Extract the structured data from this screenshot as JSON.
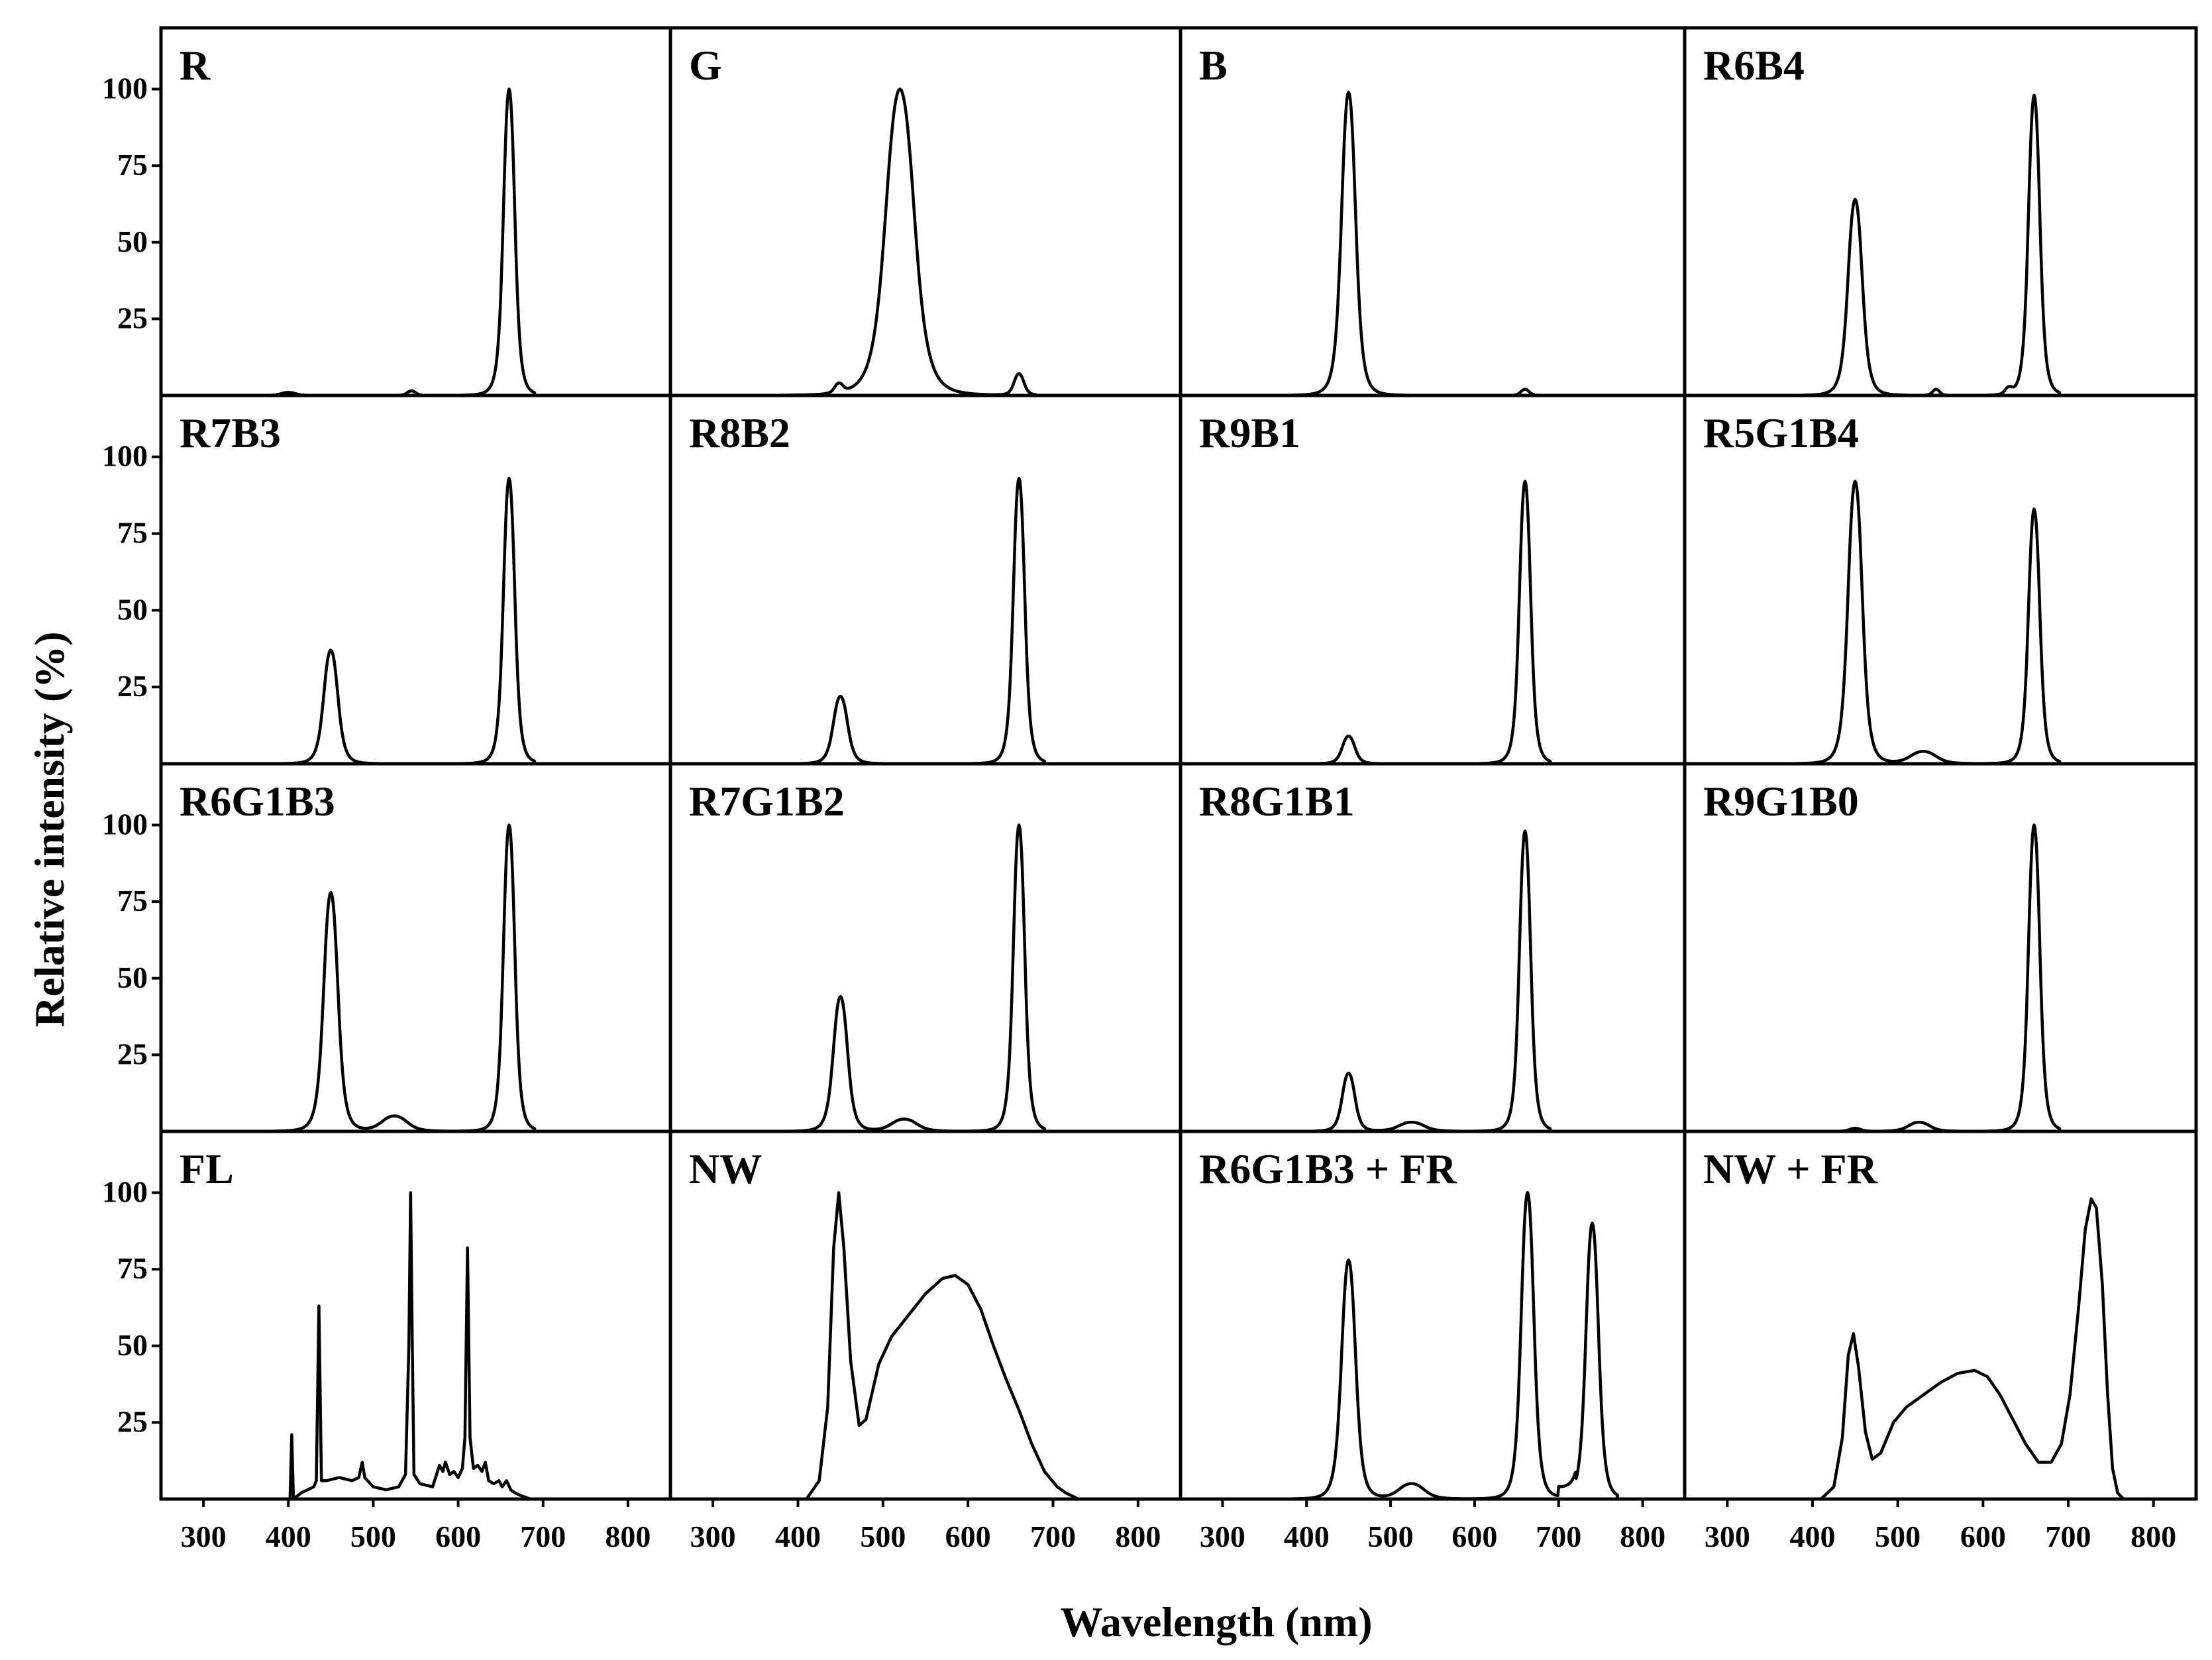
{
  "chart_data": {
    "type": "line",
    "layout": "4x4 grid of small multiples sharing axes",
    "xlabel": "Wavelength (nm)",
    "ylabel": "Relative intensity (%)",
    "xlim": [
      250,
      850
    ],
    "ylim": [
      0,
      120
    ],
    "x_ticks": [
      "300",
      "400",
      "500",
      "600",
      "700",
      "800"
    ],
    "y_ticks": [
      "25",
      "50",
      "75",
      "100"
    ],
    "grid": false,
    "panels": [
      {
        "label": "R",
        "peaks": [
          [
            660,
            100,
            8
          ],
          [
            400,
            1,
            10
          ],
          [
            545,
            1.5,
            6
          ]
        ],
        "x_end": 690
      },
      {
        "label": "G",
        "peaks": [
          [
            520,
            100,
            20
          ],
          [
            448,
            3,
            6
          ],
          [
            660,
            7,
            7
          ]
        ],
        "x_end": 680
      },
      {
        "label": "B",
        "peaks": [
          [
            450,
            99,
            10
          ],
          [
            660,
            2,
            6
          ]
        ],
        "x_end": 680
      },
      {
        "label": "R6B4",
        "peaks": [
          [
            450,
            64,
            10
          ],
          [
            660,
            98,
            8
          ],
          [
            545,
            2,
            5
          ],
          [
            630,
            2,
            5
          ]
        ],
        "x_end": 690
      },
      {
        "label": "R7B3",
        "peaks": [
          [
            450,
            37,
            10
          ],
          [
            660,
            93,
            8
          ]
        ],
        "x_end": 690
      },
      {
        "label": "R8B2",
        "peaks": [
          [
            450,
            22,
            10
          ],
          [
            660,
            93,
            8
          ]
        ],
        "x_end": 690
      },
      {
        "label": "R9B1",
        "peaks": [
          [
            450,
            9,
            9
          ],
          [
            660,
            92,
            8
          ]
        ],
        "x_end": 690
      },
      {
        "label": "R5G1B4",
        "peaks": [
          [
            450,
            92,
            10
          ],
          [
            530,
            4,
            18
          ],
          [
            660,
            83,
            8
          ]
        ],
        "x_end": 690
      },
      {
        "label": "R6G1B3",
        "peaks": [
          [
            450,
            78,
            10
          ],
          [
            525,
            5,
            18
          ],
          [
            660,
            100,
            8
          ]
        ],
        "x_end": 690
      },
      {
        "label": "R7G1B2",
        "peaks": [
          [
            450,
            44,
            10
          ],
          [
            525,
            4,
            18
          ],
          [
            660,
            100,
            8
          ]
        ],
        "x_end": 690
      },
      {
        "label": "R8G1B1",
        "peaks": [
          [
            450,
            19,
            9
          ],
          [
            525,
            3,
            18
          ],
          [
            660,
            98,
            8
          ]
        ],
        "x_end": 690
      },
      {
        "label": "R9G1B0",
        "peaks": [
          [
            450,
            1,
            8
          ],
          [
            525,
            3,
            15
          ],
          [
            660,
            100,
            8
          ]
        ],
        "x_end": 690
      },
      {
        "label": "FL",
        "x_end": 690,
        "points": [
          [
            400,
            0
          ],
          [
            402,
            0
          ],
          [
            404,
            21
          ],
          [
            406,
            0
          ],
          [
            415,
            2
          ],
          [
            430,
            4
          ],
          [
            433,
            6
          ],
          [
            436,
            63
          ],
          [
            439,
            6
          ],
          [
            445,
            6
          ],
          [
            460,
            7
          ],
          [
            475,
            6
          ],
          [
            483,
            7
          ],
          [
            487,
            12
          ],
          [
            490,
            7
          ],
          [
            500,
            4
          ],
          [
            515,
            3
          ],
          [
            530,
            4
          ],
          [
            538,
            8
          ],
          [
            542,
            50
          ],
          [
            544,
            100
          ],
          [
            546,
            50
          ],
          [
            548,
            8
          ],
          [
            555,
            5
          ],
          [
            570,
            4
          ],
          [
            578,
            11
          ],
          [
            582,
            9
          ],
          [
            585,
            12
          ],
          [
            590,
            8
          ],
          [
            595,
            9
          ],
          [
            600,
            7
          ],
          [
            605,
            10
          ],
          [
            608,
            20
          ],
          [
            611,
            82
          ],
          [
            614,
            20
          ],
          [
            618,
            10
          ],
          [
            623,
            11
          ],
          [
            628,
            9
          ],
          [
            632,
            12
          ],
          [
            636,
            6
          ],
          [
            642,
            5
          ],
          [
            648,
            6
          ],
          [
            652,
            4
          ],
          [
            657,
            6
          ],
          [
            662,
            3
          ],
          [
            667,
            2
          ],
          [
            675,
            1
          ],
          [
            685,
            0
          ]
        ]
      },
      {
        "label": "NW",
        "x_end": 730,
        "points": [
          [
            410,
            0
          ],
          [
            425,
            6
          ],
          [
            435,
            30
          ],
          [
            442,
            82
          ],
          [
            448,
            100
          ],
          [
            454,
            82
          ],
          [
            462,
            45
          ],
          [
            472,
            24
          ],
          [
            480,
            26
          ],
          [
            495,
            44
          ],
          [
            510,
            53
          ],
          [
            530,
            60
          ],
          [
            550,
            67
          ],
          [
            570,
            72
          ],
          [
            585,
            73
          ],
          [
            600,
            70
          ],
          [
            615,
            62
          ],
          [
            630,
            50
          ],
          [
            645,
            39
          ],
          [
            660,
            29
          ],
          [
            675,
            18
          ],
          [
            690,
            9
          ],
          [
            705,
            4
          ],
          [
            715,
            2
          ],
          [
            730,
            0
          ]
        ]
      },
      {
        "label": "R6G1B3 + FR",
        "peaks": [
          [
            450,
            78,
            10
          ],
          [
            525,
            5,
            18
          ],
          [
            663,
            100,
            9
          ],
          [
            740,
            90,
            9
          ]
        ],
        "x_end": 770,
        "lift": [
          [
            700,
            3
          ],
          [
            720,
            3
          ]
        ]
      },
      {
        "label": "NW + FR",
        "x_end": 760,
        "points": [
          [
            410,
            0
          ],
          [
            425,
            4
          ],
          [
            435,
            20
          ],
          [
            442,
            47
          ],
          [
            448,
            54
          ],
          [
            454,
            43
          ],
          [
            462,
            22
          ],
          [
            470,
            13
          ],
          [
            480,
            15
          ],
          [
            495,
            25
          ],
          [
            510,
            30
          ],
          [
            530,
            34
          ],
          [
            550,
            38
          ],
          [
            570,
            41
          ],
          [
            590,
            42
          ],
          [
            605,
            40
          ],
          [
            620,
            34
          ],
          [
            635,
            26
          ],
          [
            650,
            18
          ],
          [
            665,
            12
          ],
          [
            680,
            12
          ],
          [
            692,
            18
          ],
          [
            702,
            34
          ],
          [
            712,
            62
          ],
          [
            720,
            88
          ],
          [
            727,
            98
          ],
          [
            733,
            95
          ],
          [
            740,
            70
          ],
          [
            746,
            35
          ],
          [
            752,
            10
          ],
          [
            758,
            2
          ],
          [
            765,
            0
          ]
        ]
      }
    ]
  }
}
